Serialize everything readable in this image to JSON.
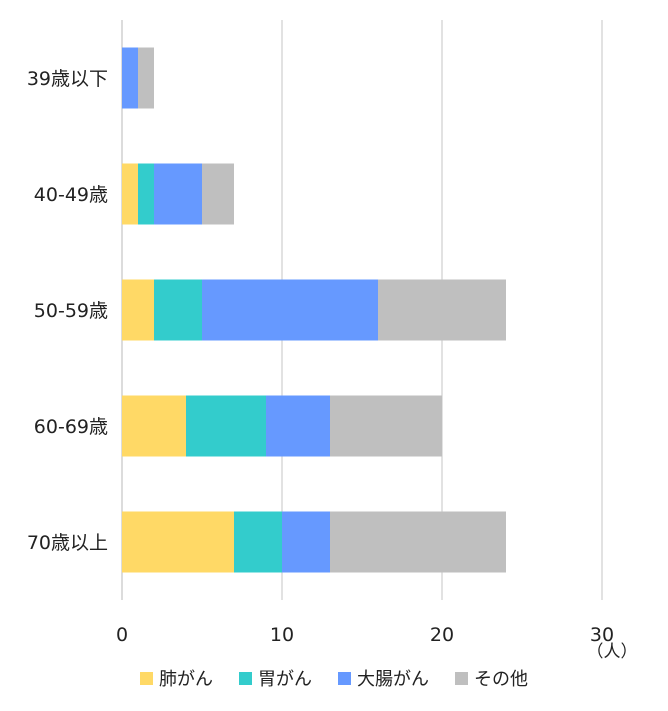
{
  "chart_data": {
    "type": "bar",
    "orientation": "horizontal",
    "stacked": true,
    "categories": [
      "39歳以下",
      "40-49歳",
      "50-59歳",
      "60-69歳",
      "70歳以上"
    ],
    "series": [
      {
        "name": "肺がん",
        "color": "#FFD966",
        "values": [
          0,
          1,
          2,
          4,
          7
        ]
      },
      {
        "name": "胃がん",
        "color": "#33CCCC",
        "values": [
          0,
          1,
          3,
          5,
          3
        ]
      },
      {
        "name": "大腸がん",
        "color": "#6699FF",
        "values": [
          1,
          3,
          11,
          4,
          3
        ]
      },
      {
        "name": "その他",
        "color": "#BFBFBF",
        "values": [
          1,
          2,
          8,
          7,
          11
        ]
      }
    ],
    "xlim": [
      0,
      30
    ],
    "xticks": [
      "0",
      "10",
      "20",
      "30"
    ],
    "xunit": "（人）",
    "grid": true,
    "legend_position": "bottom"
  }
}
